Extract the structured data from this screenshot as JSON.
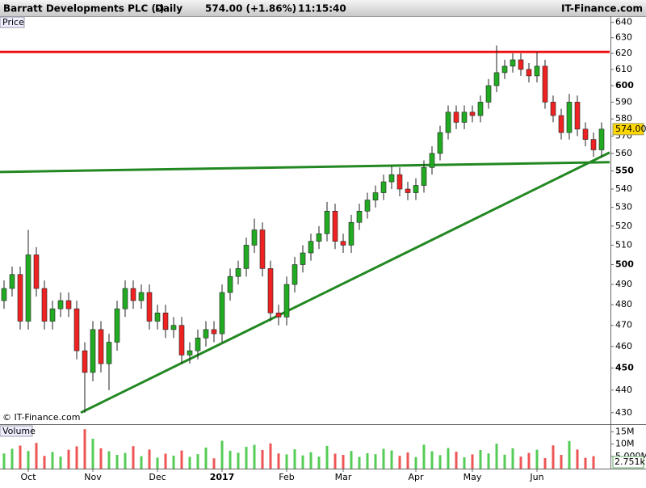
{
  "header": {
    "title": "Barratt Developments PLC (-)",
    "period": "Daily",
    "quote": "574.00 (+1.86%)",
    "time": "11:15:40",
    "brand": "IT-Finance.com"
  },
  "chart_data": [
    {
      "type": "candlestick",
      "label": "Price",
      "watermark": "© IT-Finance.com",
      "categories": [
        null,
        null,
        null,
        "Oct",
        null,
        null,
        null,
        null,
        null,
        null,
        null,
        "Nov",
        null,
        null,
        null,
        null,
        null,
        null,
        null,
        "Dec",
        null,
        null,
        null,
        null,
        null,
        null,
        null,
        "2017",
        null,
        null,
        null,
        null,
        null,
        null,
        null,
        "Feb",
        null,
        null,
        null,
        null,
        null,
        null,
        "Mar",
        null,
        null,
        null,
        null,
        null,
        null,
        null,
        null,
        "Apr",
        null,
        null,
        null,
        null,
        null,
        null,
        "May",
        null,
        null,
        null,
        null,
        null,
        null,
        null,
        "Jun",
        null,
        null,
        null,
        null,
        null,
        null,
        null,
        null
      ],
      "open": [
        482,
        488,
        495,
        472,
        505,
        488,
        472,
        478,
        482,
        478,
        458,
        448,
        468,
        452,
        462,
        478,
        488,
        482,
        486,
        472,
        476,
        468,
        470,
        456,
        458,
        464,
        468,
        466,
        486,
        494,
        498,
        510,
        518,
        498,
        476,
        474,
        490,
        500,
        506,
        512,
        516,
        528,
        512,
        510,
        522,
        528,
        534,
        538,
        544,
        548,
        540,
        538,
        542,
        552,
        560,
        572,
        584,
        578,
        584,
        582,
        590,
        600,
        608,
        612,
        616,
        610,
        606,
        612,
        590,
        582,
        572,
        590,
        574,
        568,
        562
      ],
      "high": [
        492,
        499,
        499,
        518,
        509,
        492,
        482,
        486,
        486,
        482,
        462,
        472,
        472,
        466,
        482,
        492,
        492,
        490,
        490,
        480,
        480,
        474,
        474,
        462,
        468,
        472,
        472,
        490,
        498,
        502,
        514,
        524,
        522,
        502,
        480,
        494,
        504,
        510,
        516,
        520,
        533,
        532,
        516,
        526,
        532,
        538,
        542,
        548,
        553,
        552,
        544,
        546,
        556,
        564,
        576,
        588,
        588,
        588,
        588,
        594,
        604,
        625,
        616,
        620,
        620,
        614,
        621,
        616,
        594,
        586,
        595,
        594,
        578,
        572,
        578
      ],
      "low": [
        478,
        484,
        468,
        468,
        484,
        468,
        468,
        474,
        474,
        454,
        430,
        444,
        448,
        440,
        458,
        474,
        478,
        478,
        468,
        468,
        464,
        464,
        452,
        452,
        454,
        460,
        462,
        462,
        482,
        490,
        494,
        506,
        494,
        472,
        470,
        470,
        486,
        496,
        502,
        508,
        512,
        508,
        506,
        506,
        518,
        524,
        530,
        534,
        540,
        536,
        534,
        534,
        538,
        548,
        556,
        568,
        574,
        574,
        578,
        578,
        586,
        596,
        604,
        608,
        606,
        602,
        602,
        586,
        578,
        568,
        568,
        570,
        564,
        558,
        558
      ],
      "close": [
        488,
        495,
        472,
        505,
        488,
        472,
        478,
        482,
        478,
        458,
        448,
        468,
        452,
        462,
        478,
        488,
        482,
        486,
        472,
        476,
        468,
        470,
        456,
        458,
        464,
        468,
        466,
        486,
        494,
        498,
        510,
        518,
        498,
        476,
        474,
        490,
        500,
        506,
        512,
        516,
        528,
        512,
        510,
        522,
        528,
        534,
        538,
        544,
        548,
        540,
        538,
        542,
        552,
        560,
        572,
        584,
        578,
        584,
        582,
        590,
        600,
        608,
        612,
        616,
        610,
        606,
        612,
        590,
        582,
        572,
        590,
        574,
        568,
        562,
        574
      ],
      "up_color": "#22aa22",
      "down_color": "#ee2222",
      "ylim": [
        425,
        644
      ],
      "log_scale": true,
      "yticks": [
        430,
        440,
        450,
        460,
        470,
        480,
        490,
        500,
        510,
        520,
        530,
        540,
        550,
        560,
        570,
        580,
        590,
        600,
        610,
        620,
        630,
        640
      ],
      "last_price": {
        "value": 574,
        "label": "574.00"
      },
      "trendlines": [
        {
          "color": "#ee1111",
          "points": [
            [
              -0.5,
              621
            ],
            [
              75,
              621
            ]
          ]
        },
        {
          "color": "#228822",
          "points": [
            [
              -0.5,
              549.5
            ],
            [
              75,
              555
            ]
          ]
        },
        {
          "color": "#228822",
          "points": [
            [
              9.5,
              430
            ],
            [
              75,
              560.5
            ]
          ]
        }
      ]
    },
    {
      "type": "bar",
      "label": "Volume",
      "values": [
        6200000,
        8100000,
        9400000,
        7200000,
        10500000,
        5200000,
        6800000,
        4900000,
        7700000,
        9100000,
        16100000,
        12200000,
        8300000,
        7100000,
        5600000,
        6400000,
        9200000,
        5100000,
        7800000,
        4500000,
        6100000,
        5300000,
        7400000,
        4800000,
        5900000,
        8600000,
        4200000,
        11400000,
        7300000,
        6500000,
        8900000,
        9700000,
        7600000,
        10300000,
        6200000,
        5800000,
        7900000,
        5400000,
        6700000,
        4900000,
        9300000,
        6100000,
        5600000,
        7200000,
        4800000,
        6300000,
        5900000,
        8100000,
        7400000,
        5200000,
        6600000,
        4700000,
        9800000,
        7100000,
        5500000,
        8400000,
        6900000,
        4600000,
        5800000,
        7600000,
        6200000,
        10200000,
        5700000,
        8300000,
        4900000,
        6400000,
        7700000,
        4300000,
        9500000,
        5600000,
        11300000,
        7800000,
        4400000,
        5100000,
        2751
      ],
      "up_color": "#55cc55",
      "down_color": "#ee5555",
      "ylim": [
        0,
        17500000
      ],
      "yticks": [
        {
          "value": 15000000,
          "label": "15M"
        },
        {
          "value": 10000000,
          "label": "10M"
        },
        {
          "value": 5000000,
          "label": "5.000M"
        }
      ],
      "last_value": {
        "value": 2751,
        "label": "2.751k"
      }
    }
  ]
}
